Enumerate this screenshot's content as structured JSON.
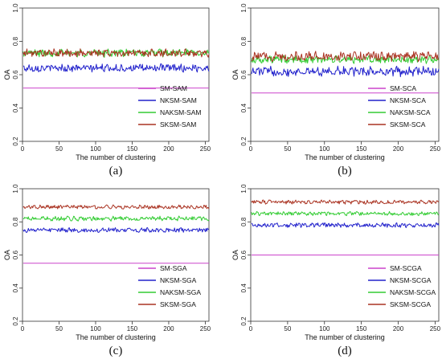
{
  "chart_data": [
    {
      "type": "line",
      "caption": "(a)",
      "xlabel": "The number of clustering",
      "ylabel": "OA",
      "xlim": [
        0,
        255
      ],
      "ylim": [
        0.2,
        1.0
      ],
      "xticks": [
        0,
        50,
        100,
        150,
        200,
        250
      ],
      "yticks": [
        0.2,
        0.4,
        0.6,
        0.8,
        1.0
      ],
      "legend_position": "bottom-right",
      "series": [
        {
          "name": "SM-SAM",
          "color": "#cc44cc",
          "mean": 0.52,
          "amp": 0.0
        },
        {
          "name": "NKSM-SAM",
          "color": "#2222cc",
          "mean": 0.64,
          "amp": 0.02
        },
        {
          "name": "NAKSM-SAM",
          "color": "#33cc33",
          "mean": 0.73,
          "amp": 0.02
        },
        {
          "name": "SKSM-SAM",
          "color": "#aa3322",
          "mean": 0.73,
          "amp": 0.02
        }
      ]
    },
    {
      "type": "line",
      "caption": "(b)",
      "xlabel": "The number of clustering",
      "ylabel": "OA",
      "xlim": [
        0,
        255
      ],
      "ylim": [
        0.2,
        1.0
      ],
      "xticks": [
        0,
        50,
        100,
        150,
        200,
        250
      ],
      "yticks": [
        0.2,
        0.4,
        0.6,
        0.8,
        1.0
      ],
      "legend_position": "bottom-right",
      "series": [
        {
          "name": "SM-SCA",
          "color": "#cc44cc",
          "mean": 0.49,
          "amp": 0.0
        },
        {
          "name": "NKSM-SCA",
          "color": "#2222cc",
          "mean": 0.62,
          "amp": 0.025
        },
        {
          "name": "NAKSM-SCA",
          "color": "#33cc33",
          "mean": 0.69,
          "amp": 0.02
        },
        {
          "name": "SKSM-SCA",
          "color": "#aa3322",
          "mean": 0.71,
          "amp": 0.025
        }
      ]
    },
    {
      "type": "line",
      "caption": "(c)",
      "xlabel": "The number of clustering",
      "ylabel": "OA",
      "xlim": [
        0,
        255
      ],
      "ylim": [
        0.2,
        1.0
      ],
      "xticks": [
        0,
        50,
        100,
        150,
        200,
        250
      ],
      "yticks": [
        0.2,
        0.4,
        0.6,
        0.8,
        1.0
      ],
      "legend_position": "bottom-right",
      "series": [
        {
          "name": "SM-SGA",
          "color": "#cc44cc",
          "mean": 0.55,
          "amp": 0.0
        },
        {
          "name": "NKSM-SGA",
          "color": "#2222cc",
          "mean": 0.75,
          "amp": 0.012
        },
        {
          "name": "NAKSM-SGA",
          "color": "#33cc33",
          "mean": 0.82,
          "amp": 0.012
        },
        {
          "name": "SKSM-SGA",
          "color": "#aa3322",
          "mean": 0.89,
          "amp": 0.01
        }
      ]
    },
    {
      "type": "line",
      "caption": "(d)",
      "xlabel": "The number of clustering",
      "ylabel": "OA",
      "xlim": [
        0,
        255
      ],
      "ylim": [
        0.2,
        1.0
      ],
      "xticks": [
        0,
        50,
        100,
        150,
        200,
        250
      ],
      "yticks": [
        0.2,
        0.4,
        0.6,
        0.8,
        1.0
      ],
      "legend_position": "bottom-right",
      "series": [
        {
          "name": "SM-SCGA",
          "color": "#cc44cc",
          "mean": 0.6,
          "amp": 0.0
        },
        {
          "name": "NKSM-SCGA",
          "color": "#2222cc",
          "mean": 0.78,
          "amp": 0.012
        },
        {
          "name": "NAKSM-SCGA",
          "color": "#33cc33",
          "mean": 0.85,
          "amp": 0.01
        },
        {
          "name": "SKSM-SCGA",
          "color": "#aa3322",
          "mean": 0.92,
          "amp": 0.01
        }
      ]
    }
  ]
}
